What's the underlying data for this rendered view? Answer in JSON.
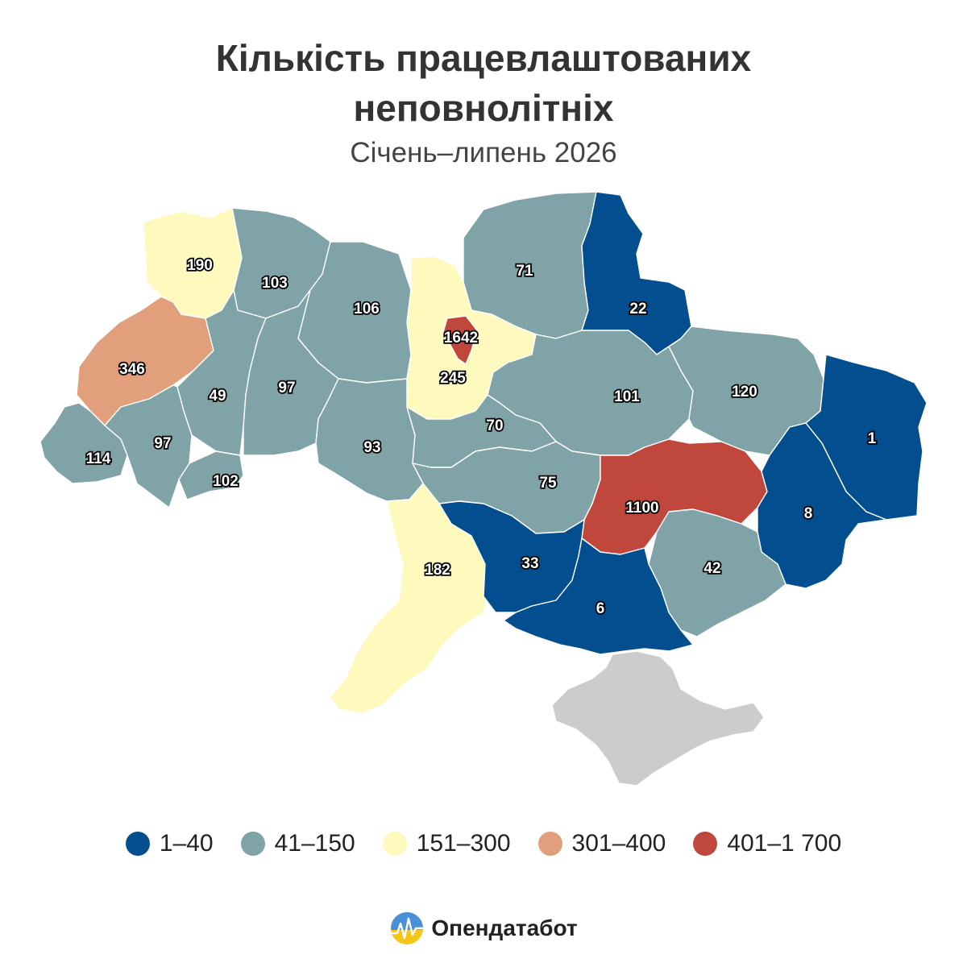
{
  "header": {
    "title_line1": "Кількість працевлаштованих",
    "title_line2": "неповнолітніх",
    "subtitle": "Січень–липень 2026"
  },
  "colors": {
    "1-40": "#024e8f",
    "41-150": "#7fa3a6",
    "151-300": "#fefabe",
    "301-400": "#e29f7c",
    "401-1700": "#c0473b",
    "crimea": "#cccccc"
  },
  "map": {
    "regions": [
      {
        "value": "190",
        "category": "151-300"
      },
      {
        "value": "103",
        "category": "41-150"
      },
      {
        "value": "106",
        "category": "41-150"
      },
      {
        "value": "71",
        "category": "41-150"
      },
      {
        "value": "22",
        "category": "1-40"
      },
      {
        "value": "1642",
        "category": "401-1700"
      },
      {
        "value": "245",
        "category": "151-300"
      },
      {
        "value": "346",
        "category": "301-400"
      },
      {
        "value": "49",
        "category": "41-150"
      },
      {
        "value": "97",
        "category": "41-150"
      },
      {
        "value": "101",
        "category": "41-150"
      },
      {
        "value": "120",
        "category": "41-150"
      },
      {
        "value": "1",
        "category": "1-40"
      },
      {
        "value": "114",
        "category": "41-150"
      },
      {
        "value": "97",
        "category": "41-150"
      },
      {
        "value": "70",
        "category": "41-150"
      },
      {
        "value": "93",
        "category": "41-150"
      },
      {
        "value": "102",
        "category": "41-150"
      },
      {
        "value": "75",
        "category": "41-150"
      },
      {
        "value": "1100",
        "category": "401-1700"
      },
      {
        "value": "8",
        "category": "1-40"
      },
      {
        "value": "182",
        "category": "151-300"
      },
      {
        "value": "33",
        "category": "1-40"
      },
      {
        "value": "42",
        "category": "41-150"
      },
      {
        "value": "6",
        "category": "1-40"
      }
    ]
  },
  "legend": [
    {
      "label": "1–40",
      "color": "#024e8f"
    },
    {
      "label": "41–150",
      "color": "#7fa3a6"
    },
    {
      "label": "151–300",
      "color": "#fefabe"
    },
    {
      "label": "301–400",
      "color": "#e29f7c"
    },
    {
      "label": "401–1 700",
      "color": "#c0473b"
    }
  ],
  "brand": {
    "name": "Опендатабот"
  }
}
